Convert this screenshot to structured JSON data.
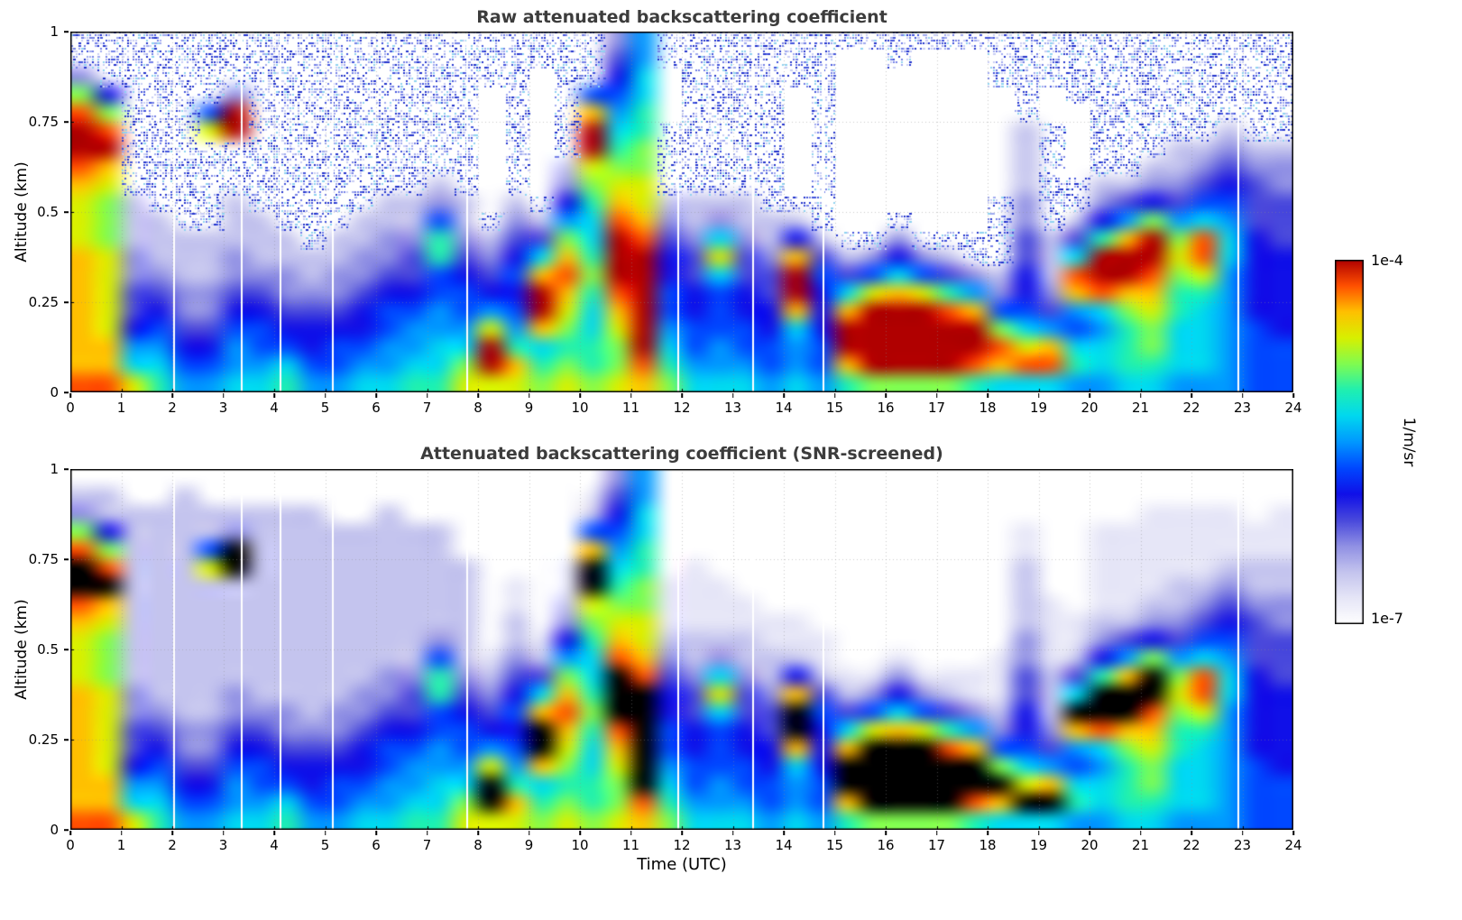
{
  "figure": {
    "panels": [
      {
        "title": "Raw attenuated backscattering coefficient",
        "ylabel": "Altitude (km)"
      },
      {
        "title": "Attenuated backscattering coefficient (SNR-screened)",
        "ylabel": "Altitude (km)"
      }
    ],
    "xlabel": "Time (UTC)",
    "colorbar": {
      "max_label": "1e-4",
      "min_label": "1e-7",
      "unit_label": "1/m/sr"
    }
  },
  "chart_data": {
    "type": "heatmap",
    "x_axis": {
      "label": "Time (UTC)",
      "range": [
        0,
        24
      ],
      "ticks": [
        0,
        1,
        2,
        3,
        4,
        5,
        6,
        7,
        8,
        9,
        10,
        11,
        12,
        13,
        14,
        15,
        16,
        17,
        18,
        19,
        20,
        21,
        22,
        23,
        24
      ],
      "tick_labels": [
        "0",
        "1",
        "2",
        "3",
        "4",
        "5",
        "6",
        "7",
        "8",
        "9",
        "10",
        "11",
        "12",
        "13",
        "14",
        "15",
        "16",
        "17",
        "18",
        "19",
        "20",
        "21",
        "22",
        "23",
        "24"
      ]
    },
    "y_axis": {
      "label": "Altitude (km)",
      "range": [
        0,
        1
      ],
      "ticks": [
        0,
        0.25,
        0.5,
        0.75,
        1
      ],
      "tick_labels": [
        "0",
        "0.25",
        "0.5",
        "0.75",
        "1"
      ]
    },
    "color_scale": {
      "scale": "log",
      "min": 1e-07,
      "max": 0.0001,
      "min_label": "1e-7",
      "max_label": "1e-4",
      "unit": "1/m/sr"
    },
    "level_colors": [
      "#ffffff",
      "#e6e6f7",
      "#c4c4ee",
      "#9090e4",
      "#4848dc",
      "#1010e8",
      "#0048ff",
      "#0098ff",
      "#00d8f0",
      "#20f0b0",
      "#80fc50",
      "#d8f000",
      "#ffc000",
      "#ff5000",
      "#b00000",
      "#000000"
    ],
    "grid_info": {
      "time_bins": 48,
      "time_bin_hours": 0.5,
      "alt_bins": 20,
      "alt_bin_km": 0.05,
      "order": "each string is one 0.5 h time column; char 0 = 0-0.05 km (ground), char 19 = 0.95-1 km",
      "levels": "hex digit: 0 = below detection (white), 1 = ~1e-7 1/m/sr (noise floor), e = ~1e-4 1/m/sr (log scale), f = saturated/flagged (black in SNR-screened panel)"
    },
    "panels": [
      {
        "title": "Raw attenuated backscattering coefficient",
        "grid": [
          "dcccccccbbbcdeeda311",
          "dccbbbbbaaabceda5111",
          "b8754433222111111111",
          "98765432221111111111",
          "76543322211111111111",
          "76543322211111b61111",
          "87765433222111ee3111",
          "87665432221111111111",
          "98654332211111111111",
          "76554322111111111111",
          "76654332211111111111",
          "87655433221111111111",
          "87766543322111111111",
          "98776544322111111111",
          "98877669963211111111",
          "ba876654322111111111",
          "beeb7543210000000111",
          "bc976565432111111111",
          "a98ceec8421000000011",
          "ba9abcdca75321111111",
          "a99889a9889abeec6111",
          "baabcdeeedcba9876543",
          "cdeeeeeedcbbaa998877",
          "a9876655432111100011",
          "87665544322111111111",
          "8776668b832111111111",
          "87665544322111111111",
          "76655443221111111111",
          "8778ceec521000000111",
          "76655564211111111111",
          "9ceec842100000000001",
          "aeeeeb63100000000001",
          "aeeeec85310000000011",
          "aeeeeb63100000000001",
          "aeeed942100000000001",
          "9deec731100000000001",
          "8cda6321111000000111",
          "8db86554433222211111",
          "8dc74322211111100111",
          "79867cd8421100001111",
          "78878dee953211111111",
          "8999aceec74211111111",
          "89aabcdeea5321111111",
          "788899aba74322111111",
          "788889bdd86432111111",
          "77777778876543211111",
          "66665555544432111111",
          "66655555444332111111"
        ]
      },
      {
        "title": "Attenuated backscattering coefficient (SNR-screened)",
        "grid": [
          "dcccccccbbbcdffda320",
          "dccbbbbbaaabcfda5220",
          "b8754433222222222200",
          "98765432222222222200",
          "76543322222222222220",
          "76543322222222b62200",
          "87765433222222ff3200",
          "87665432222222222200",
          "98654332222222222200",
          "76554322222222222200",
          "76654332222222222000",
          "87655433222222222000",
          "87766543322222222200",
          "98776544322222222000",
          "98877669963222222000",
          "ba876654322222200000",
          "bffb7543210000000000",
          "bc976565432211000000",
          "a98cffc8421000000000",
          "ba9abcdca75321100000",
          "a99889a9889abffc6210",
          "baabcdfffdcba9876543",
          "cdffffffdcbbaa998877",
          "a9876655432111000000",
          "87665544322111100000",
          "8776668b832111000000",
          "87665544322110000000",
          "76655443221100000000",
          "8778cffc521100000000",
          "76655564211000000000",
          "9cffc842100000000000",
          "affffb63100000000000",
          "affffc85310000000000",
          "affffb63100000000000",
          "afffd942100000000000",
          "9dffc731100000000000",
          "8cfa6321110000000000",
          "8fb86554433222211000",
          "8fc74322211110000000",
          "79867cf8421100000000",
          "78878dff953211111000",
          "8999acffc74211111000",
          "89aabcdffa5321111100",
          "788899aba74322111100",
          "788889bdd86432111100",
          "77777778876543211100",
          "66665555544432211000",
          "66655555444332211100"
        ]
      }
    ],
    "data_gap_times": [
      2.03,
      3.37,
      4.13,
      5.15,
      7.78,
      11.93,
      13.4,
      14.78,
      22.92
    ],
    "noise": {
      "seed": 1337,
      "density": 0.5,
      "colors": [
        "#c9cef5",
        "#9fa9ef",
        "#7380e7",
        "#4254dd",
        "#2233cc",
        "#8fd2f0"
      ]
    },
    "grid_line_color": "#8c8c8c",
    "layout": {
      "grid": "dotted, hourly vertical + 0.25 km horizontal",
      "colorbar_position": "right, shared by both panels"
    }
  }
}
